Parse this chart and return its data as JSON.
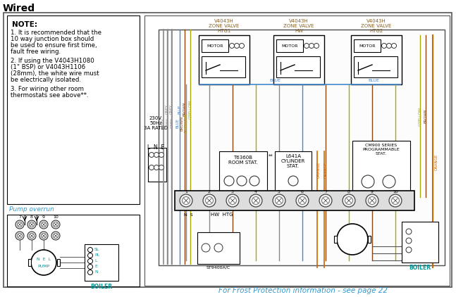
{
  "title": "Wired",
  "bg_color": "#ffffff",
  "note_text": "NOTE:",
  "note_lines": [
    "1. It is recommended that the",
    "10 way junction box should",
    "be used to ensure first time,",
    "fault free wiring.",
    "",
    "2. If using the V4043H1080",
    "(1\" BSP) or V4043H1106",
    "(28mm), the white wire must",
    "be electrically isolated.",
    "",
    "3. For wiring other room",
    "thermostats see above**."
  ],
  "pump_overrun_label": "Pump overrun",
  "zone_labels": [
    "V4043H\nZONE VALVE\nHTG1",
    "V4043H\nZONE VALVE\nHW",
    "V4043H\nZONE VALVE\nHTG2"
  ],
  "frost_text": "For Frost Protection information - see page 22",
  "st9400_label": "ST9400A/C",
  "boiler_label": "BOILER",
  "t6360b_label": "T6360B\nROOM STAT.",
  "l641a_label": "L641A\nCYLINDER\nSTAT.",
  "cm900_label": "CM900 SERIES\nPROGRAMMABLE\nSTAT.",
  "supply_label": "230V\n50Hz\n3A RATED",
  "lne_label": "L  N  E",
  "wire_colors": {
    "grey": "#888888",
    "blue": "#4488cc",
    "brown": "#8B4513",
    "gyellow": "#aaaa00",
    "orange": "#cc6600",
    "black": "#000000",
    "cyan": "#009999"
  }
}
